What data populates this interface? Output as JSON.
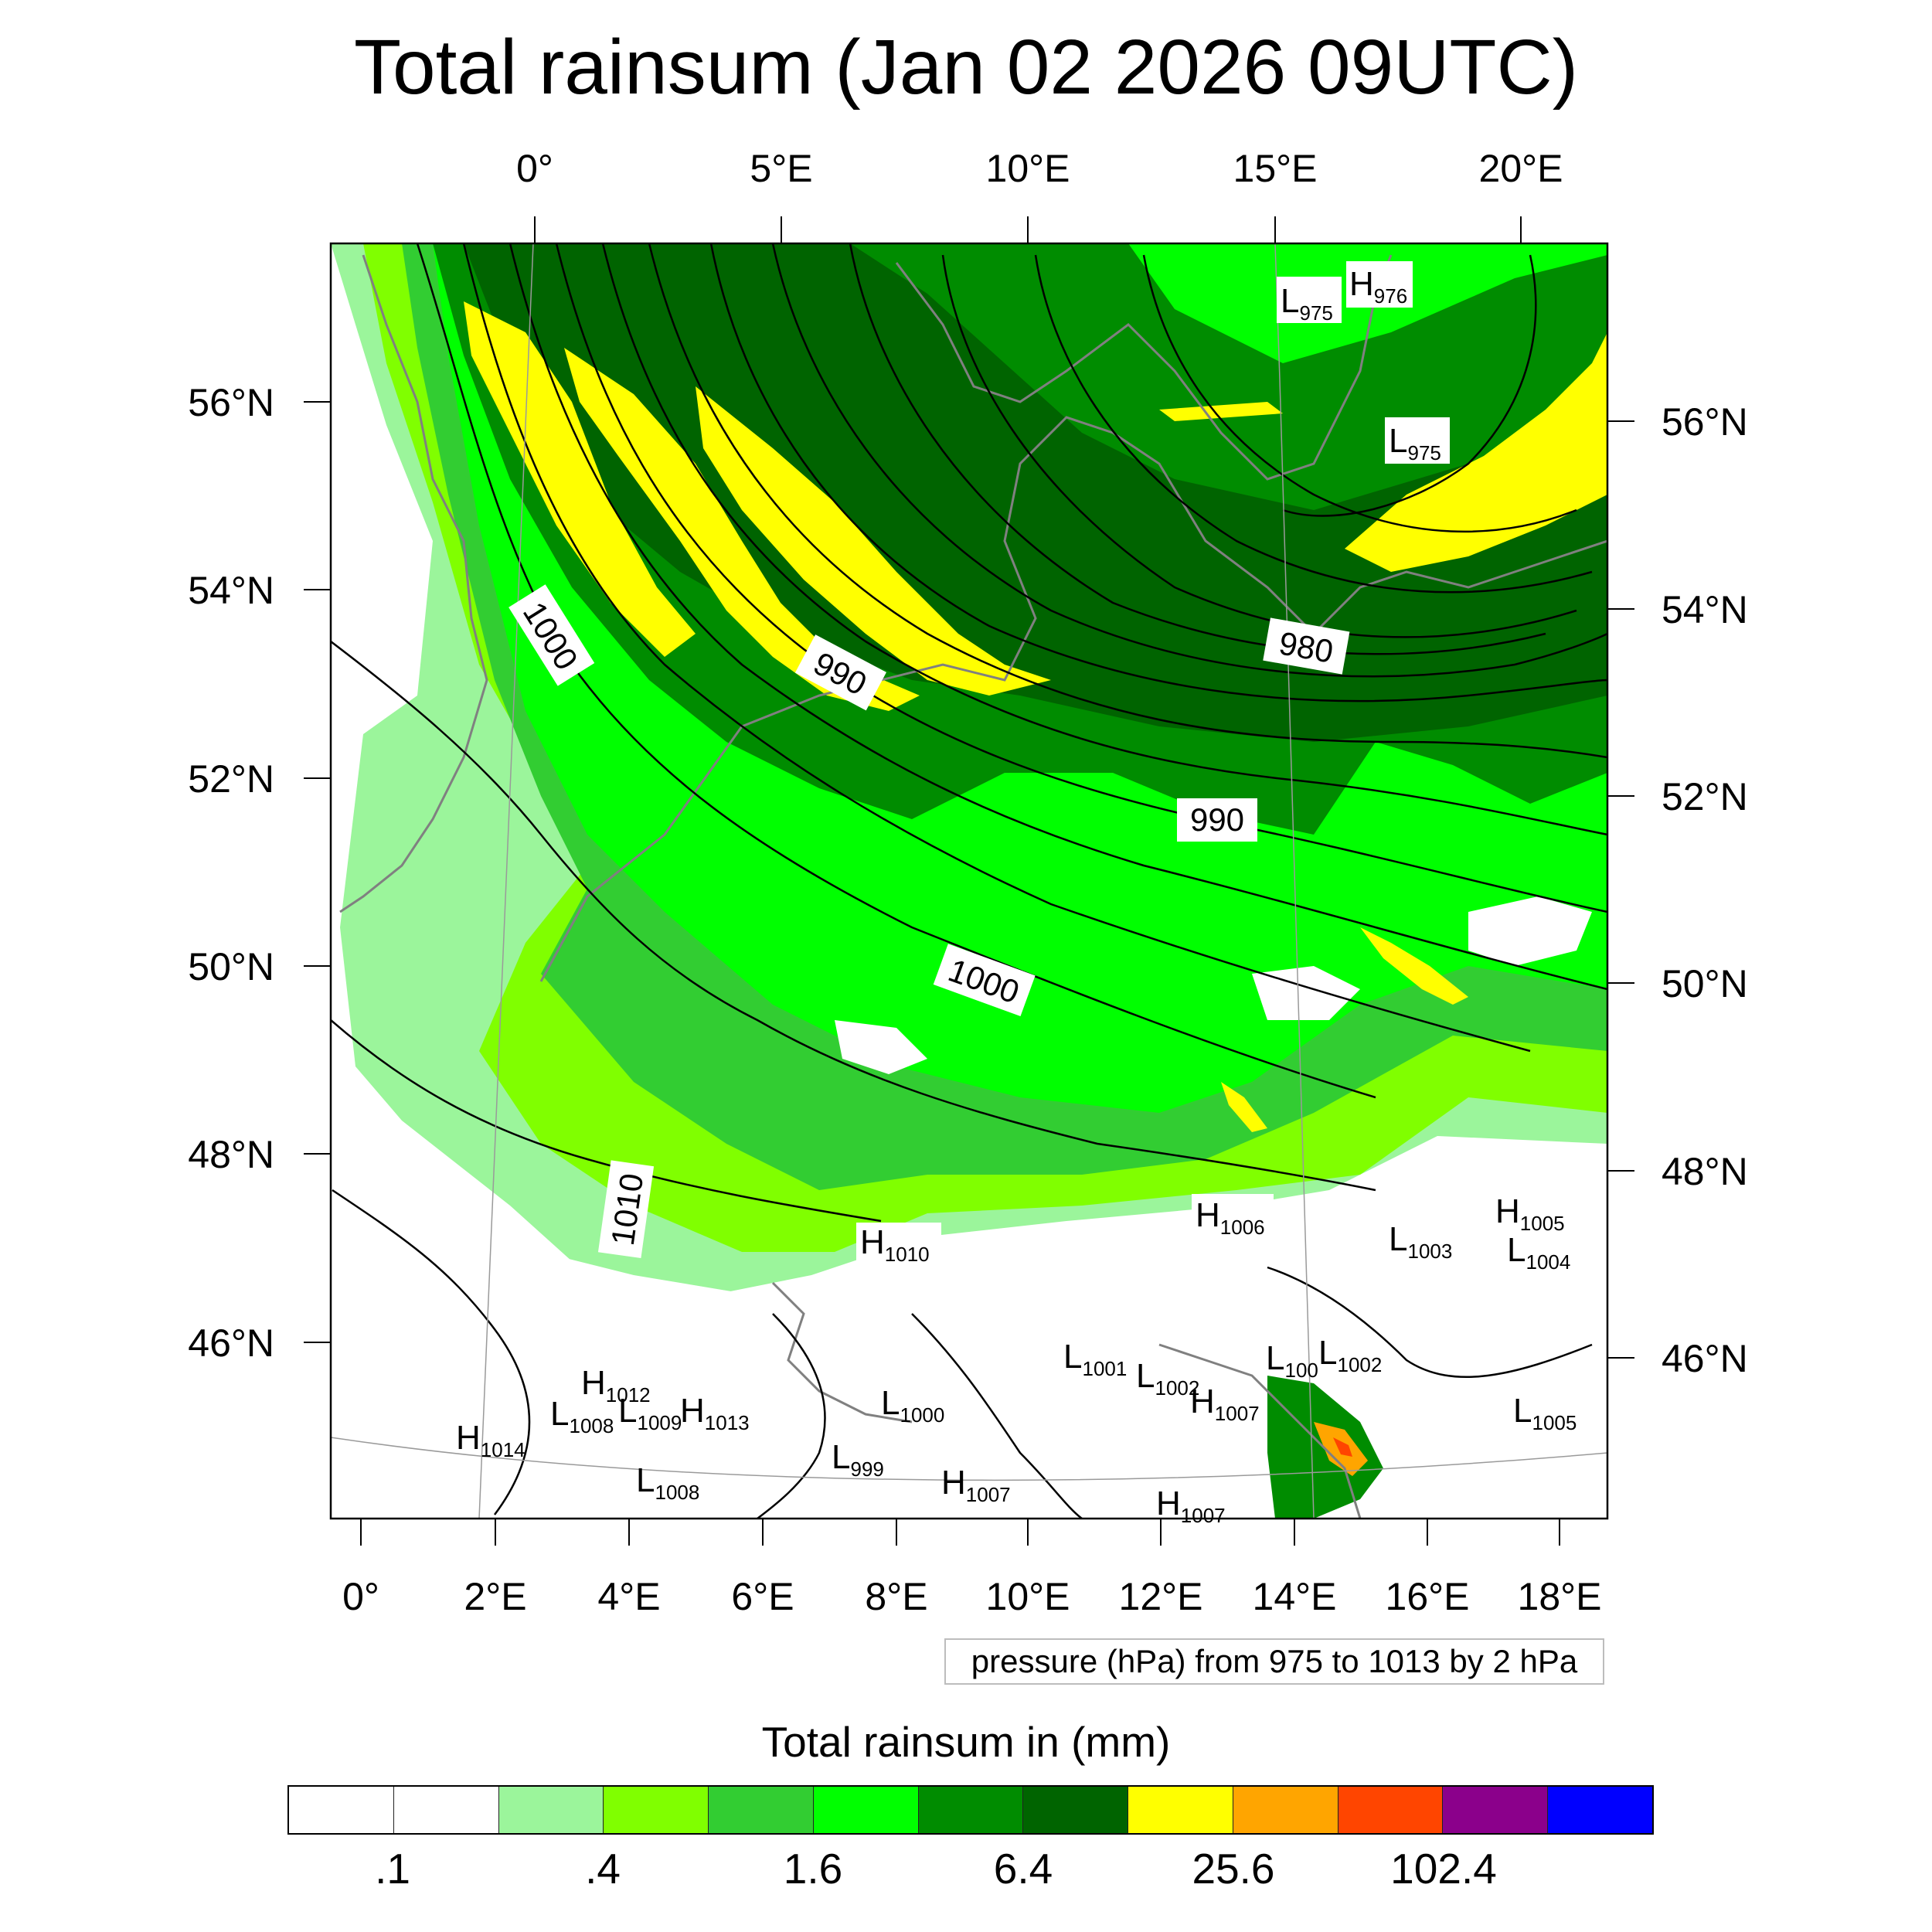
{
  "title": "Total rainsum (Jan 02 2026 09UTC)",
  "top_lon_labels": [
    "0°",
    "5°E",
    "10°E",
    "15°E",
    "20°E"
  ],
  "bottom_lon_labels": [
    "0°",
    "2°E",
    "4°E",
    "6°E",
    "8°E",
    "10°E",
    "12°E",
    "14°E",
    "16°E",
    "18°E"
  ],
  "left_lat_labels": [
    "56°N",
    "54°N",
    "52°N",
    "50°N",
    "48°N",
    "46°N"
  ],
  "right_lat_labels": [
    "56°N",
    "54°N",
    "52°N",
    "50°N",
    "48°N",
    "46°N"
  ],
  "contour_labels": [
    "1000",
    "990",
    "980",
    "990",
    "1000",
    "1010"
  ],
  "pressure_systems": [
    {
      "letter": "L",
      "value": "975"
    },
    {
      "letter": "H",
      "value": "976"
    },
    {
      "letter": "L",
      "value": "975"
    },
    {
      "letter": "H",
      "value": "1006"
    },
    {
      "letter": "H",
      "value": "1005"
    },
    {
      "letter": "L",
      "value": "1003"
    },
    {
      "letter": "L",
      "value": "1004"
    },
    {
      "letter": "H",
      "value": "1010"
    },
    {
      "letter": "H",
      "value": "1012"
    },
    {
      "letter": "L",
      "value": "1008"
    },
    {
      "letter": "L",
      "value": "1009"
    },
    {
      "letter": "H",
      "value": "1013"
    },
    {
      "letter": "H",
      "value": "1014"
    },
    {
      "letter": "L",
      "value": "1000"
    },
    {
      "letter": "L",
      "value": "1001"
    },
    {
      "letter": "L",
      "value": "1002"
    },
    {
      "letter": "L",
      "value": "1002"
    },
    {
      "letter": "L",
      "value": "100"
    },
    {
      "letter": "H",
      "value": "1007"
    },
    {
      "letter": "L",
      "value": "1005"
    },
    {
      "letter": "L",
      "value": "999"
    },
    {
      "letter": "L",
      "value": "1008"
    },
    {
      "letter": "H",
      "value": "1007"
    },
    {
      "letter": "H",
      "value": "1007"
    }
  ],
  "contour_note": "pressure (hPa) from 975 to 1013 by 2 hPa",
  "colorbar": {
    "title": "Total rainsum in (mm)",
    "colors": [
      "#ffffff",
      "#ffffff",
      "#9bf59b",
      "#80ff00",
      "#32cd32",
      "#00ff00",
      "#008c00",
      "#006400",
      "#ffff00",
      "#ffa500",
      "#ff4500",
      "#8b008b",
      "#0000ff"
    ],
    "labels": [
      ".1",
      ".4",
      "1.6",
      "6.4",
      "25.6",
      "102.4"
    ]
  }
}
